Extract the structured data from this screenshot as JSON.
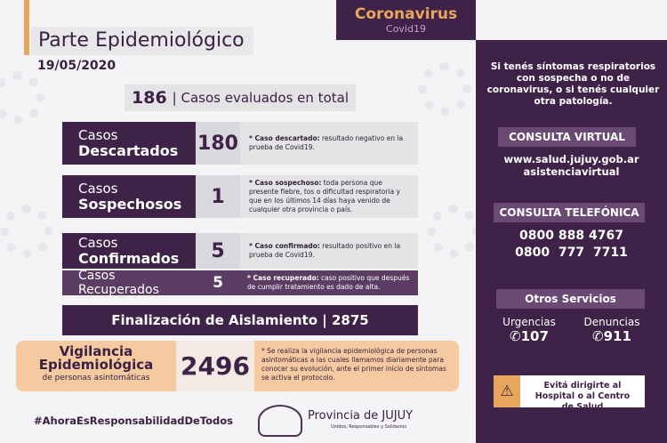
{
  "header": {
    "title": "Parte Epidemiológico",
    "date": "19/05/2020",
    "banner_title": "Coronavirus",
    "banner_sub": "Covid19"
  },
  "total": {
    "value": "186",
    "label": "| Casos evaluados en total"
  },
  "rows": [
    {
      "l1": "Casos",
      "l2": "Descartados",
      "value": "180",
      "term": "* Caso descartado:",
      "desc": " resultado negativo en la prueba de Covid19."
    },
    {
      "l1": "Casos",
      "l2": "Sospechosos",
      "value": "1",
      "term": "* Caso sospechoso:",
      "desc": " toda persona que presente fiebre, tos o dificultad respiratoria y que en los últimos 14 días haya venido de cualquier otra provincia o país."
    },
    {
      "l1": "Casos",
      "l2": "Confirmados",
      "value": "5",
      "term": "* Caso confirmado:",
      "desc": " resultado positivo en la prueba de Covid19."
    }
  ],
  "recuperados": {
    "label": "Casos Recuperados",
    "value": "5",
    "term": "* Caso recuperado:",
    "desc": " caso positivo que después de cumplir tratamiento es dado de alta."
  },
  "aislamiento": {
    "label": "Finalización de Aislamiento | 2875"
  },
  "vigilancia": {
    "l1": "Vigilancia",
    "l2": "Epidemiológica",
    "l3": "de personas asintomáticas",
    "value": "2496",
    "desc": "* Se realiza la vigilancia epidemiológica de personas asintomáticas a las cuales llamamos diariamente para conocer su evolución, ante el primer inicio de síntomas se activa el protocolo."
  },
  "footer": {
    "hashtag": "#AhoraEsResponsabilidadDeTodos",
    "logo_title": "Provincia de JUJUY",
    "logo_sub": "Unidos, Responsables y Solidarios"
  },
  "side": {
    "intro": "Si tenés síntomas respiratorios con sospecha o no de coronavirus, o si tenés cualquier otra patología.",
    "virtual_title": "CONSULTA VIRTUAL",
    "url1": "www.salud.jujuy.gob.ar",
    "url2": "asistenciavirtual",
    "tel_title": "CONSULTA TELEFÓNICA",
    "tel1": "0800 888 4767",
    "tel2": "0800  777  7711",
    "otros_title": "Otros Servicios",
    "urg_label": "Urgencias",
    "urg_num": "107",
    "den_label": "Denuncias",
    "den_num": "911",
    "warning": "Evitá dirigirte al Hospital o al Centro de Salud"
  },
  "colors": {
    "purple": "#3e2247",
    "orange": "#e8a65c",
    "peach": "#f6caa0"
  }
}
